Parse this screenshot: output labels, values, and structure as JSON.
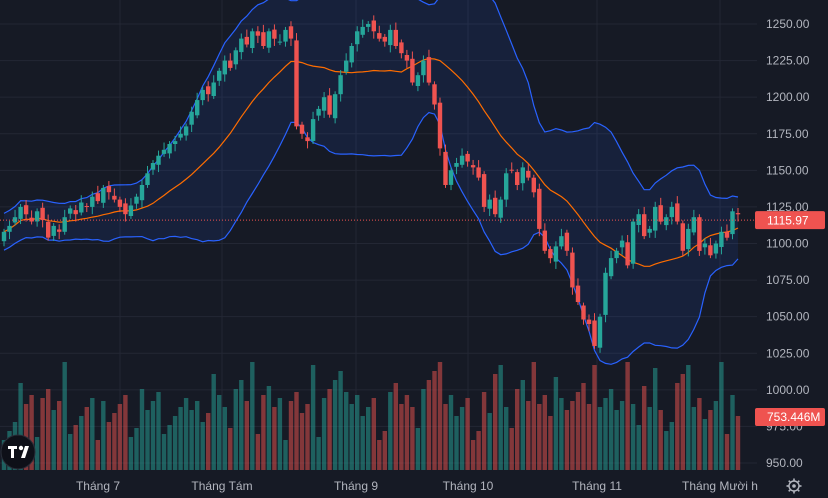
{
  "chart_data": {
    "type": "candlestick",
    "price_axis": {
      "ticks": [
        "1250.00",
        "1225.00",
        "1200.00",
        "1175.00",
        "1150.00",
        "1125.00",
        "1100.00",
        "1075.00",
        "1050.00",
        "1025.00",
        "1000.00",
        "975.00",
        "950.00"
      ],
      "range": [
        940,
        1262
      ]
    },
    "time_axis": {
      "labels": [
        "Tháng 7",
        "Tháng Tám",
        "Tháng 9",
        "Tháng 10",
        "Tháng 11",
        "Tháng Mười h"
      ]
    },
    "last_price": "1115.97",
    "last_volume": "753.446M",
    "price_line": 1116,
    "volume_max_units": 42,
    "colors": {
      "up": "#26a69a",
      "down": "#ef5350",
      "band": "#2962ff",
      "basis": "#ff6d00",
      "last_label": "#ef5350"
    },
    "closes": [
      1108,
      1112,
      1118,
      1125,
      1120,
      1115,
      1122,
      1116,
      1104,
      1112,
      1108,
      1118,
      1124,
      1120,
      1128,
      1125,
      1132,
      1129,
      1138,
      1135,
      1130,
      1125,
      1120,
      1126,
      1132,
      1140,
      1148,
      1155,
      1160,
      1164,
      1168,
      1170,
      1175,
      1180,
      1190,
      1198,
      1205,
      1202,
      1210,
      1218,
      1225,
      1220,
      1232,
      1240,
      1236,
      1245,
      1242,
      1235,
      1245,
      1240,
      1238,
      1246,
      1240,
      1180,
      1175,
      1170,
      1185,
      1192,
      1200,
      1188,
      1202,
      1215,
      1225,
      1235,
      1245,
      1248,
      1250,
      1245,
      1240,
      1238,
      1246,
      1235,
      1230,
      1225,
      1210,
      1215,
      1225,
      1210,
      1195,
      1165,
      1140,
      1150,
      1155,
      1160,
      1156,
      1152,
      1145,
      1125,
      1130,
      1120,
      1130,
      1148,
      1150,
      1140,
      1152,
      1145,
      1135,
      1110,
      1095,
      1090,
      1098,
      1105,
      1095,
      1070,
      1060,
      1048,
      1045,
      1030,
      1050,
      1080,
      1090,
      1095,
      1102,
      1085,
      1115,
      1120,
      1105,
      1110,
      1125,
      1115,
      1118,
      1125,
      1115,
      1095,
      1110,
      1118,
      1095,
      1100,
      1092,
      1100,
      1108,
      1104,
      1122,
      1120
    ]
  }
}
